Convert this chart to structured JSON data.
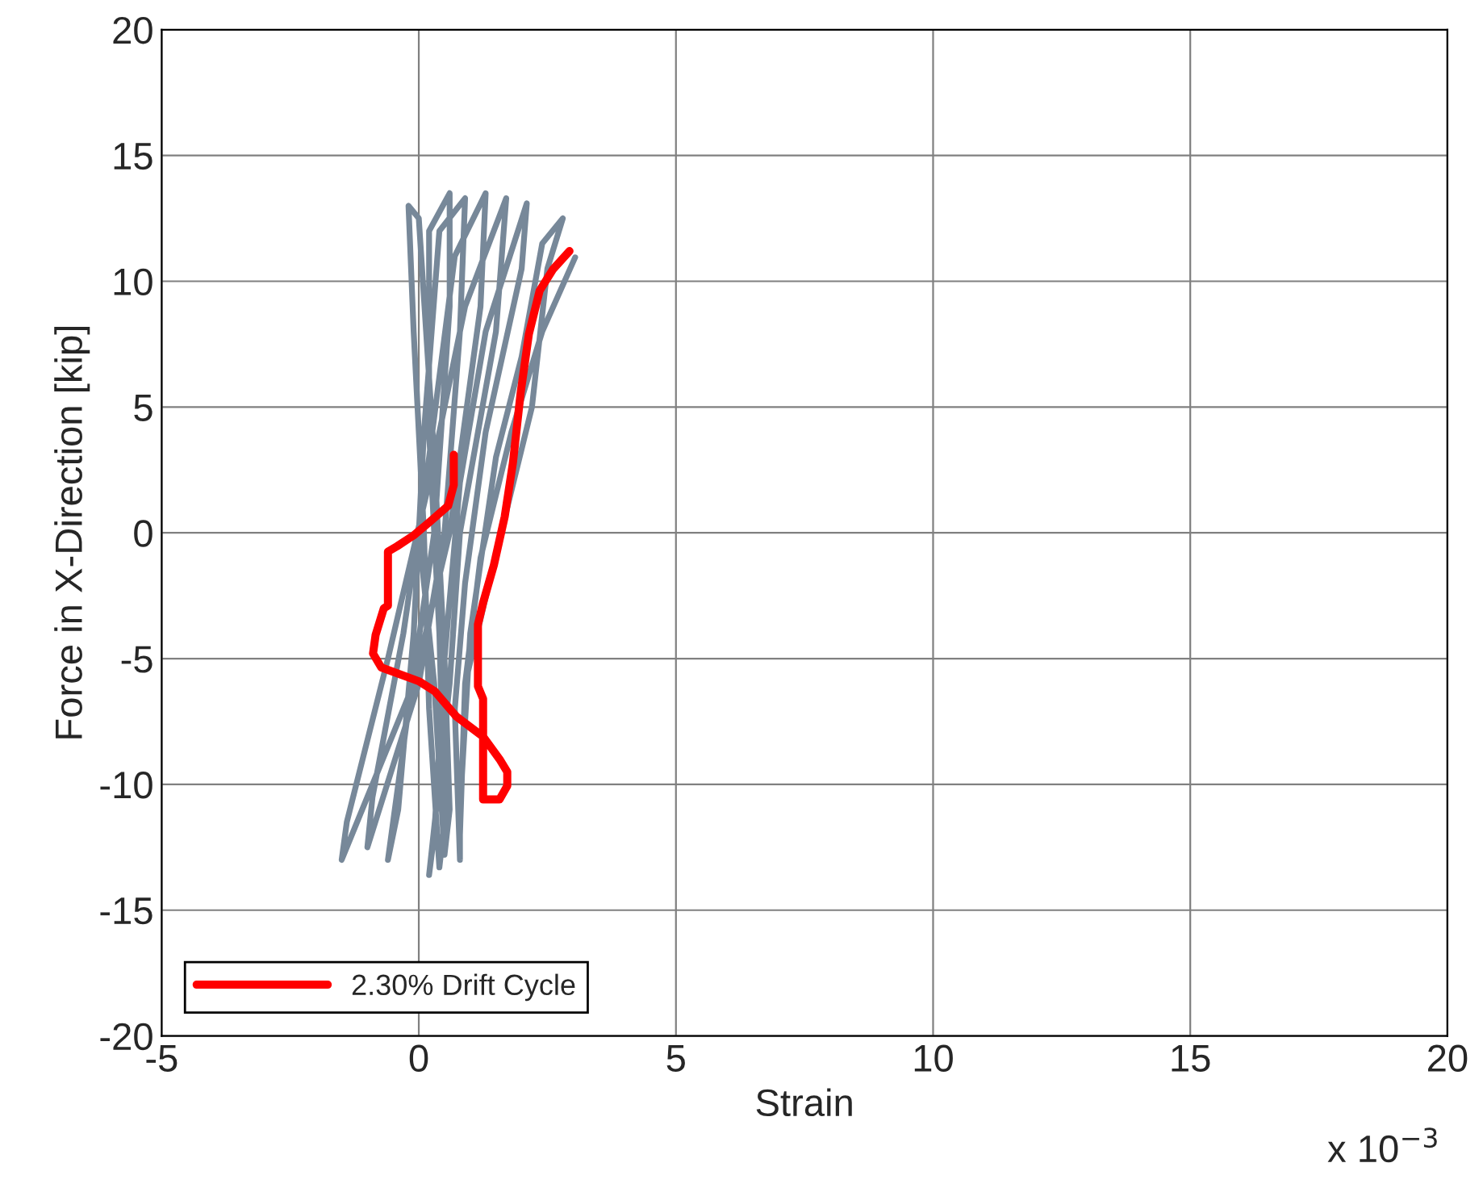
{
  "chart_data": {
    "type": "line",
    "xlabel": "Strain",
    "ylabel": "Force in X-Direction [kip]",
    "annotations": [
      "x 10$^{−3}$"
    ],
    "xlim": [
      -5,
      20
    ],
    "xticks": [
      -5,
      0,
      5,
      10,
      15,
      20
    ],
    "ylim": [
      -20,
      20
    ],
    "yticks": [
      -20,
      -15,
      -10,
      -5,
      0,
      5,
      10,
      15,
      20
    ],
    "grid": true,
    "legend": "bottom left",
    "line_style": "solid",
    "series": [
      {
        "color": "#778899",
        "x": [
          0.0,
          0.3,
          0.5,
          0.6,
          0.5,
          0.3,
          0.0,
          -0.2,
          -0.1,
          0.1,
          0.2,
          0.4,
          0.5,
          0.4,
          0.2,
          0.2,
          0.6,
          0.6,
          0.3,
          -0.2,
          -0.6,
          -0.4,
          -0.1,
          0.1,
          0.4,
          0.9,
          0.8,
          0.5,
          0.0,
          -1.0,
          -0.9,
          -0.3,
          0.2,
          0.7,
          1.3,
          1.2,
          0.6,
          -0.1,
          -1.5,
          -1.4,
          -0.6,
          0.2,
          0.9,
          1.7,
          1.5,
          0.8,
          0.6,
          0.2,
          0.3,
          0.5,
          0.8,
          1.3,
          2.1,
          2.0,
          1.3,
          0.9,
          0.7,
          0.8,
          0.8,
          1.0,
          1.5,
          2.0,
          2.4,
          2.8,
          2.5,
          2.2,
          1.6,
          0.9,
          0.8,
          0.9,
          1.2,
          1.8,
          2.4,
          3.04
        ],
        "values": [
          0,
          -6,
          -12.8,
          -11,
          -5,
          3,
          12.5,
          13.0,
          8,
          0,
          -7,
          -13.3,
          -11.5,
          -4,
          4,
          12,
          13.5,
          9,
          0,
          -7,
          -13.0,
          -11,
          -4,
          4,
          12,
          13.3,
          8,
          0,
          -6,
          -12.5,
          -10.5,
          -4,
          3,
          11,
          13.5,
          9,
          0,
          -6,
          -13.0,
          -11.5,
          -5,
          2,
          9,
          13.3,
          8,
          0,
          -6,
          -13.6,
          -12,
          -5,
          2,
          8,
          13.1,
          10.5,
          4,
          -2,
          -7,
          -13.0,
          -11,
          -4,
          3,
          7,
          11.5,
          12.5,
          10.5,
          5,
          0,
          -6,
          -12,
          -6,
          -1,
          4,
          8,
          10.95
        ]
      },
      {
        "name": "2.30% Drift Cycle",
        "color": "#ff0000",
        "x": [
          0.68,
          0.68,
          0.57,
          0.21,
          -0.1,
          -0.42,
          -0.6,
          -0.6,
          -0.68,
          -0.84,
          -0.89,
          -0.73,
          0.0,
          0.31,
          0.73,
          1.25,
          1.57,
          1.72,
          1.72,
          1.57,
          1.25,
          1.25,
          1.15,
          1.15,
          1.25,
          1.46,
          1.67,
          1.83,
          1.98,
          2.14,
          2.35,
          2.61,
          2.93
        ],
        "values": [
          3.1,
          1.9,
          1.07,
          0.43,
          -0.1,
          -0.53,
          -0.75,
          -2.9,
          -3.0,
          -4.06,
          -4.8,
          -5.35,
          -5.9,
          -6.3,
          -7.3,
          -8.1,
          -9.0,
          -9.5,
          -10.06,
          -10.6,
          -10.6,
          -6.6,
          -6.1,
          -3.64,
          -2.78,
          -1.28,
          0.64,
          2.78,
          5.56,
          7.9,
          9.63,
          10.48,
          11.2
        ]
      }
    ]
  }
}
